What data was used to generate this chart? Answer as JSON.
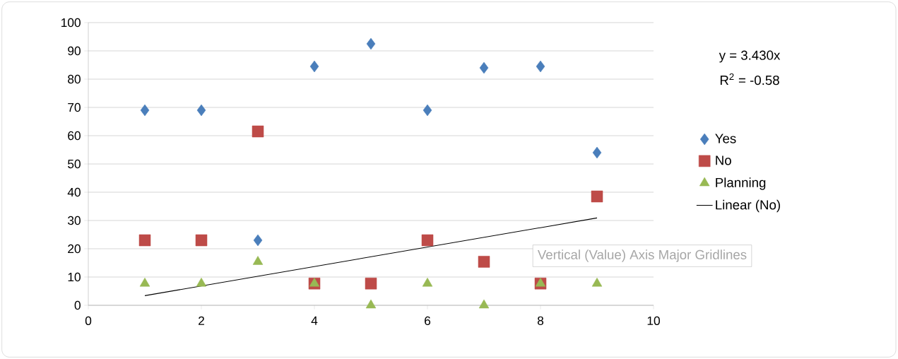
{
  "chart_data": {
    "type": "scatter",
    "x": [
      1,
      2,
      3,
      4,
      5,
      6,
      7,
      8,
      9
    ],
    "series": [
      {
        "name": "Yes",
        "color": "#4a7ebb",
        "marker": "diamond",
        "values": [
          69,
          69,
          23,
          84.5,
          92.5,
          69,
          84,
          84.5,
          54
        ]
      },
      {
        "name": "No",
        "color": "#be4b48",
        "marker": "square",
        "values": [
          23,
          23,
          61.5,
          7.7,
          7.7,
          23,
          15.4,
          7.7,
          38.5
        ]
      },
      {
        "name": "Planning",
        "color": "#98b954",
        "marker": "triangle",
        "values": [
          7.7,
          7.7,
          15.4,
          7.7,
          0,
          7.7,
          0,
          7.7,
          7.7
        ]
      },
      {
        "name": "Linear (No)",
        "type": "line",
        "color": "#000000",
        "marker": "none",
        "x": [
          1,
          9
        ],
        "values": [
          3.4,
          30.9
        ]
      }
    ],
    "xlim": [
      0,
      10
    ],
    "xticks": [
      0,
      2,
      4,
      6,
      8,
      10
    ],
    "ylim": [
      0,
      100
    ],
    "yticks": [
      0,
      10,
      20,
      30,
      40,
      50,
      60,
      70,
      80,
      90,
      100
    ],
    "grid": "y",
    "legend": "right",
    "annotations": [
      "y = 3.430x",
      "R$^{2}$ = -0.58",
      "Vertical (Value) Axis Major Gridlines"
    ]
  }
}
